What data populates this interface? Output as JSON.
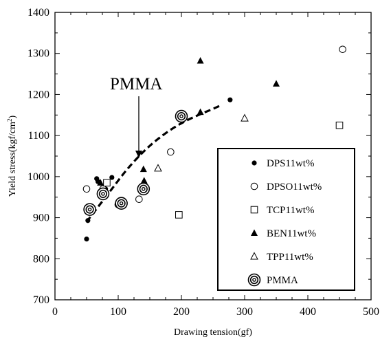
{
  "chart_data": {
    "type": "scatter",
    "xlabel": "Drawing tension(gf)",
    "ylabel": "Yield stress(kgf/cm",
    "ylabel_sup": "2",
    "ylabel_end": ")",
    "xlim": [
      0,
      500
    ],
    "ylim": [
      700,
      1400
    ],
    "xticks": [
      0,
      100,
      200,
      300,
      400,
      500
    ],
    "yticks": [
      700,
      800,
      900,
      1000,
      1100,
      1200,
      1300,
      1400
    ],
    "grid": false,
    "legend_placement": "lower-right",
    "annotation": {
      "text": "PMMA",
      "points_to": [
        128,
        1040
      ]
    },
    "trend_curve": {
      "style": "dashed",
      "points": [
        [
          50,
          890
        ],
        [
          70,
          930
        ],
        [
          90,
          970
        ],
        [
          110,
          1010
        ],
        [
          130,
          1045
        ],
        [
          150,
          1075
        ],
        [
          170,
          1100
        ],
        [
          190,
          1121
        ],
        [
          210,
          1138
        ],
        [
          230,
          1152
        ],
        [
          250,
          1165
        ],
        [
          260,
          1172
        ]
      ]
    },
    "series": [
      {
        "name": "DPS11wt%",
        "marker": "filled-circle",
        "points": [
          [
            50,
            848
          ],
          [
            52,
            893
          ],
          [
            66,
            995
          ],
          [
            68,
            988
          ],
          [
            90,
            998
          ],
          [
            80,
            970
          ],
          [
            277,
            1187
          ]
        ]
      },
      {
        "name": "DPSO11wt%",
        "marker": "open-circle",
        "points": [
          [
            50,
            970
          ],
          [
            76,
            970
          ],
          [
            100,
            932
          ],
          [
            133,
            945
          ],
          [
            183,
            1060
          ],
          [
            455,
            1310
          ]
        ]
      },
      {
        "name": "TCP11wt%",
        "marker": "open-square",
        "points": [
          [
            82,
            985
          ],
          [
            196,
            907
          ],
          [
            450,
            1125
          ]
        ]
      },
      {
        "name": "BEN11wt%",
        "marker": "filled-triangle",
        "points": [
          [
            72,
            985
          ],
          [
            140,
            1018
          ],
          [
            141,
            990
          ],
          [
            230,
            1282
          ],
          [
            230,
            1157
          ],
          [
            350,
            1226
          ]
        ]
      },
      {
        "name": "TPP11wt%",
        "marker": "open-triangle",
        "points": [
          [
            163,
            1020
          ],
          [
            300,
            1142
          ]
        ]
      },
      {
        "name": "PMMA",
        "marker": "bullseye",
        "points": [
          [
            55,
            920
          ],
          [
            76,
            958
          ],
          [
            105,
            935
          ],
          [
            140,
            970
          ],
          [
            200,
            1147
          ]
        ]
      }
    ]
  }
}
